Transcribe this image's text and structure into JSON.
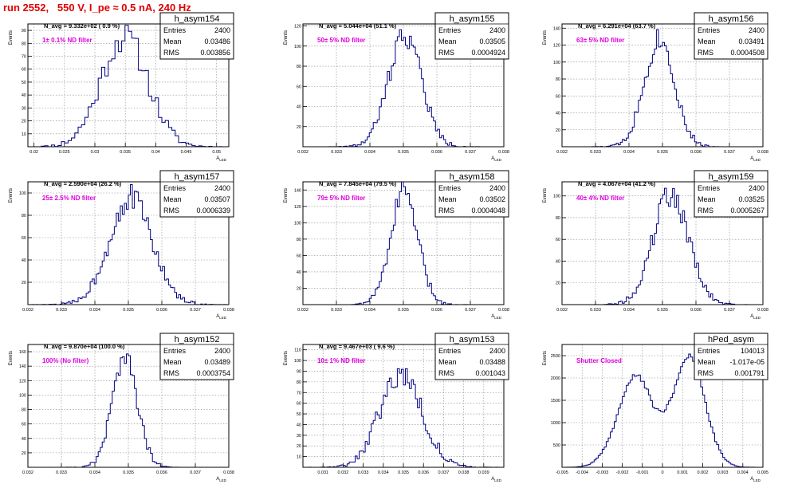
{
  "run_title": "run 2552,   550 V, I_pe ≈ 0.5 nA, 240 Hz",
  "y_axis_label": "Events",
  "x_axis_label": "A",
  "x_axis_label_sub": "LED",
  "stats_labels": {
    "entries": "Entries",
    "mean": "Mean",
    "rms": "RMS"
  },
  "colors": {
    "histogram": "#000080",
    "filter_label": "#e000e0",
    "run_title": "#e00000",
    "frame": "#000000",
    "grid": "#888888"
  },
  "chart_data": [
    {
      "type": "bar",
      "name": "h_asym154",
      "navg": "N_avg = 9.332e+02 ( 0.9 %)",
      "filter": "1± 0.1% ND filter",
      "entries": "2400",
      "mean": "0.03486",
      "rms": "0.003856",
      "mean_value": 0.03486,
      "rms_value": 0.003856,
      "n_bins": 60,
      "shape": "gauss",
      "xlim": [
        0.019,
        0.052
      ],
      "ylim": [
        0,
        95
      ],
      "xticks": [
        0.02,
        0.025,
        0.03,
        0.035,
        0.04,
        0.045,
        0.05
      ],
      "xtick_labels": [
        "0.02",
        "0.025",
        "0.03",
        "0.035",
        "0.04",
        "0.045",
        "0.05"
      ],
      "yticks": [
        10,
        20,
        30,
        40,
        50,
        60,
        70,
        80,
        90
      ],
      "ytick_labels": [
        "10",
        "20",
        "30",
        "40",
        "50",
        "60",
        "70",
        "80",
        "90"
      ],
      "peak": 85,
      "seed": 11
    },
    {
      "type": "bar",
      "name": "h_asym155",
      "navg": "N_avg = 5.044e+04 (51.1 %)",
      "filter": "50± 5% ND filter",
      "entries": "2400",
      "mean": "0.03505",
      "rms": "0.0004924",
      "mean_value": 0.03505,
      "rms_value": 0.0004924,
      "n_bins": 100,
      "shape": "gauss",
      "xlim": [
        0.032,
        0.038
      ],
      "ylim": [
        0,
        122
      ],
      "xticks": [
        0.032,
        0.033,
        0.034,
        0.035,
        0.036,
        0.037,
        0.038
      ],
      "xtick_labels": [
        "0.032",
        "0.033",
        "0.034",
        "0.035",
        "0.036",
        "0.037",
        "0.038"
      ],
      "yticks": [
        20,
        40,
        60,
        80,
        100,
        120
      ],
      "ytick_labels": [
        "20",
        "40",
        "60",
        "80",
        "100",
        "120"
      ],
      "peak": 112,
      "seed": 22
    },
    {
      "type": "bar",
      "name": "h_asym156",
      "navg": "N_avg = 6.291e+04 (63.7 %)",
      "filter": "63± 5% ND filter",
      "entries": "2400",
      "mean": "0.03491",
      "rms": "0.0004508",
      "mean_value": 0.03491,
      "rms_value": 0.0004508,
      "n_bins": 100,
      "shape": "gauss",
      "xlim": [
        0.032,
        0.038
      ],
      "ylim": [
        0,
        145
      ],
      "xticks": [
        0.032,
        0.033,
        0.034,
        0.035,
        0.036,
        0.037,
        0.038
      ],
      "xtick_labels": [
        "0.032",
        "0.033",
        "0.034",
        "0.035",
        "0.036",
        "0.037",
        "0.038"
      ],
      "yticks": [
        20,
        40,
        60,
        80,
        100,
        120,
        140
      ],
      "ytick_labels": [
        "20",
        "40",
        "60",
        "80",
        "100",
        "120",
        "140"
      ],
      "peak": 128,
      "seed": 33
    },
    {
      "type": "bar",
      "name": "h_asym157",
      "navg": "N_avg = 2.590e+04 (26.2 %)",
      "filter": "25± 2.5% ND filter",
      "entries": "2400",
      "mean": "0.03507",
      "rms": "0.0006339",
      "mean_value": 0.03507,
      "rms_value": 0.0006339,
      "n_bins": 100,
      "shape": "gauss",
      "xlim": [
        0.032,
        0.038
      ],
      "ylim": [
        0,
        110
      ],
      "xticks": [
        0.032,
        0.033,
        0.034,
        0.035,
        0.036,
        0.037,
        0.038
      ],
      "xtick_labels": [
        "0.032",
        "0.033",
        "0.034",
        "0.035",
        "0.036",
        "0.037",
        "0.038"
      ],
      "yticks": [
        20,
        40,
        60,
        80,
        100
      ],
      "ytick_labels": [
        "20",
        "40",
        "60",
        "80",
        "100"
      ],
      "peak": 96,
      "seed": 44
    },
    {
      "type": "bar",
      "name": "h_asym158",
      "navg": "N_avg = 7.845e+04 (79.5 %)",
      "filter": "79± 5% ND filter",
      "entries": "2400",
      "mean": "0.03502",
      "rms": "0.0004048",
      "mean_value": 0.03502,
      "rms_value": 0.0004048,
      "n_bins": 100,
      "shape": "gauss",
      "xlim": [
        0.032,
        0.038
      ],
      "ylim": [
        0,
        150
      ],
      "xticks": [
        0.032,
        0.033,
        0.034,
        0.035,
        0.036,
        0.037,
        0.038
      ],
      "xtick_labels": [
        "0.032",
        "0.033",
        "0.034",
        "0.035",
        "0.036",
        "0.037",
        "0.038"
      ],
      "yticks": [
        20,
        40,
        60,
        80,
        100,
        120,
        140
      ],
      "ytick_labels": [
        "20",
        "40",
        "60",
        "80",
        "100",
        "120",
        "140"
      ],
      "peak": 138,
      "seed": 55
    },
    {
      "type": "bar",
      "name": "h_asym159",
      "navg": "N_avg = 4.067e+04 (41.2 %)",
      "filter": "40± 4% ND filter",
      "entries": "2400",
      "mean": "0.03525",
      "rms": "0.0005267",
      "mean_value": 0.03525,
      "rms_value": 0.0005267,
      "n_bins": 100,
      "shape": "gauss",
      "xlim": [
        0.032,
        0.038
      ],
      "ylim": [
        0,
        113
      ],
      "xticks": [
        0.032,
        0.033,
        0.034,
        0.035,
        0.036,
        0.037,
        0.038
      ],
      "xtick_labels": [
        "0.032",
        "0.033",
        "0.034",
        "0.035",
        "0.036",
        "0.037",
        "0.038"
      ],
      "yticks": [
        20,
        40,
        60,
        80,
        100
      ],
      "ytick_labels": [
        "20",
        "40",
        "60",
        "80",
        "100"
      ],
      "peak": 102,
      "seed": 66
    },
    {
      "type": "bar",
      "name": "h_asym152",
      "navg": "N_avg = 9.870e+04 (100.0 %)",
      "filter": "100% (No filter)",
      "entries": "2400",
      "mean": "0.03489",
      "rms": "0.0003754",
      "mean_value": 0.03489,
      "rms_value": 0.0003754,
      "n_bins": 100,
      "shape": "gauss",
      "xlim": [
        0.032,
        0.038
      ],
      "ylim": [
        0,
        170
      ],
      "xticks": [
        0.032,
        0.033,
        0.034,
        0.035,
        0.036,
        0.037,
        0.038
      ],
      "xtick_labels": [
        "0.032",
        "0.033",
        "0.034",
        "0.035",
        "0.036",
        "0.037",
        "0.038"
      ],
      "yticks": [
        20,
        40,
        60,
        80,
        100,
        120,
        140,
        160
      ],
      "ytick_labels": [
        "20",
        "40",
        "60",
        "80",
        "100",
        "120",
        "140",
        "160"
      ],
      "peak": 152,
      "seed": 77
    },
    {
      "type": "bar",
      "name": "h_asym153",
      "navg": "N_avg = 9.467e+03 ( 9.6 %)",
      "filter": "10± 1% ND filter",
      "entries": "2400",
      "mean": "0.03488",
      "rms": "0.001043",
      "mean_value": 0.03488,
      "rms_value": 0.001043,
      "n_bins": 100,
      "shape": "gauss",
      "xlim": [
        0.03,
        0.04
      ],
      "ylim": [
        0,
        115
      ],
      "xticks": [
        0.031,
        0.032,
        0.033,
        0.034,
        0.035,
        0.036,
        0.037,
        0.038,
        0.039
      ],
      "xtick_labels": [
        "0.031",
        "0.032",
        "0.033",
        "0.034",
        "0.035",
        "0.036",
        "0.037",
        "0.038",
        "0.039"
      ],
      "yticks": [
        10,
        20,
        30,
        40,
        50,
        60,
        70,
        80,
        90,
        100,
        110
      ],
      "ytick_labels": [
        "10",
        "20",
        "30",
        "40",
        "50",
        "60",
        "70",
        "80",
        "90",
        "100",
        "110"
      ],
      "peak": 88,
      "seed": 88
    },
    {
      "type": "bar",
      "name": "hPed_asym",
      "navg": "",
      "filter": "Shutter Closed",
      "entries": "104013",
      "mean": "-1.017e-05",
      "rms": "0.001791",
      "mean_value": -1.017e-05,
      "rms_value": 0.001791,
      "n_bins": 100,
      "shape": "double",
      "xlim": [
        -0.005,
        0.005
      ],
      "ylim": [
        0,
        2750
      ],
      "xticks": [
        -0.005,
        -0.004,
        -0.003,
        -0.002,
        -0.001,
        0,
        0.001,
        0.002,
        0.003,
        0.004,
        0.005
      ],
      "xtick_labels": [
        "-0.005",
        "-0.004",
        "-0.003",
        "-0.002",
        "-0.001",
        "0",
        "0.001",
        "0.002",
        "0.003",
        "0.004",
        "0.005"
      ],
      "yticks": [
        500,
        1000,
        1500,
        2000,
        2500
      ],
      "ytick_labels": [
        "500",
        "1000",
        "1500",
        "2000",
        "2500"
      ],
      "peak": 2500,
      "seed": 99
    }
  ]
}
